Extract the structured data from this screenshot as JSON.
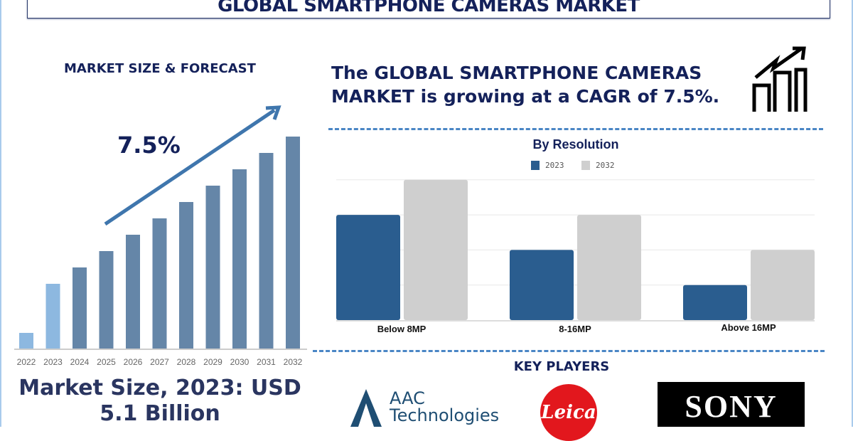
{
  "title": "GLOBAL SMARTPHONE CAMERAS MARKET",
  "left": {
    "heading": "MARKET SIZE & FORECAST",
    "cagr_label": "7.5%",
    "market_size_line1": "Market Size, 2023: USD",
    "market_size_line2": "5.1 Billion"
  },
  "right": {
    "headline_line1": "The GLOBAL SMARTPHONE CAMERAS",
    "headline_line2": "MARKET is growing at a CAGR of 7.5%.",
    "icon": "growth-chart-icon",
    "key_players_heading": "KEY PLAYERS",
    "key_players": [
      "AAC Technologies",
      "Leica",
      "SONY"
    ]
  },
  "colors": {
    "navy": "#14215a",
    "bar_light": "#8db8e0",
    "bar_main": "#6586a8",
    "arrow": "#3f76ad",
    "series_2023": "#2a5d8f",
    "series_2032": "#cfcfcf",
    "dash": "#4a86c5"
  },
  "chart_data": [
    {
      "type": "bar",
      "title": "MARKET SIZE & FORECAST",
      "categories": [
        "2022",
        "2023",
        "2024",
        "2025",
        "2026",
        "2027",
        "2028",
        "2029",
        "2030",
        "2031",
        "2032"
      ],
      "values": [
        22,
        91,
        114,
        137,
        160,
        183,
        206,
        229,
        252,
        275,
        298
      ],
      "highlighted": [
        "2022",
        "2023"
      ],
      "annotation": "7.5%",
      "grid": false
    },
    {
      "type": "bar",
      "title": "By Resolution",
      "categories": [
        "Below 8MP",
        "8-16MP",
        "Above 16MP"
      ],
      "series": [
        {
          "name": "2023",
          "values": [
            3,
            2,
            1
          ]
        },
        {
          "name": "2032",
          "values": [
            4,
            3,
            2
          ]
        }
      ],
      "ylim": [
        0,
        4
      ],
      "grid": true,
      "legend": "top-center"
    }
  ]
}
